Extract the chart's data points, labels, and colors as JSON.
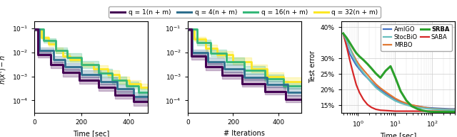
{
  "legend_entries": [
    {
      "label": "q = 1(n + m)",
      "color": "#440154",
      "lw": 2.2
    },
    {
      "label": "q = 4(n + m)",
      "color": "#2e6f8e",
      "lw": 2.2
    },
    {
      "label": "q = 16(n + m)",
      "color": "#35b779",
      "lw": 2.2
    },
    {
      "label": "q = 32(n + m)",
      "color": "#fde725",
      "lw": 2.2
    }
  ],
  "ax1": {
    "xlabel": "Time [sec]",
    "ylabel": "h(x^t) - h^*",
    "xlim": [
      0,
      480
    ],
    "ylim": [
      3e-05,
      0.2
    ],
    "xticks": [
      0,
      200,
      400
    ]
  },
  "ax2": {
    "xlabel": "# Iterations",
    "xlim": [
      0,
      500
    ],
    "ylim": [
      3e-05,
      0.2
    ],
    "xticks": [
      0,
      200,
      400
    ]
  },
  "ax3": {
    "xlabel": "Time [sec]",
    "ylabel": "Test error",
    "xlim": [
      0.35,
      400
    ],
    "ylim": [
      0.125,
      0.42
    ],
    "yticks": [
      0.15,
      0.2,
      0.25,
      0.3,
      0.4
    ],
    "ytick_labels": [
      "15%",
      "20%",
      "25%",
      "30%",
      "40%"
    ]
  },
  "curves_ax1": {
    "q32": {
      "color": "#fde725",
      "alpha_fill": 0.25,
      "lw": 2.0,
      "x": [
        0,
        30,
        30,
        60,
        60,
        90,
        90,
        120,
        120,
        150,
        150,
        200,
        200,
        250,
        250,
        310,
        310,
        360,
        360,
        400,
        400,
        450,
        450,
        480
      ],
      "y": [
        0.09,
        0.09,
        0.04,
        0.04,
        0.022,
        0.022,
        0.012,
        0.012,
        0.007,
        0.007,
        0.005,
        0.005,
        0.003,
        0.003,
        0.002,
        0.002,
        0.0012,
        0.0012,
        0.0007,
        0.0007,
        0.0005,
        0.0005,
        0.00035,
        0.00035
      ],
      "y_lo": [
        0.08,
        0.08,
        0.035,
        0.035,
        0.018,
        0.018,
        0.009,
        0.009,
        0.006,
        0.006,
        0.004,
        0.004,
        0.0025,
        0.0025,
        0.0015,
        0.0015,
        0.0009,
        0.0009,
        0.0005,
        0.0005,
        0.0004,
        0.0004,
        0.00028,
        0.00028
      ],
      "y_hi": [
        0.1,
        0.1,
        0.047,
        0.047,
        0.027,
        0.027,
        0.016,
        0.016,
        0.009,
        0.009,
        0.007,
        0.007,
        0.0038,
        0.0038,
        0.0028,
        0.0028,
        0.0018,
        0.0018,
        0.001,
        0.001,
        0.0007,
        0.0007,
        0.00048,
        0.00048
      ]
    },
    "q16": {
      "color": "#35b779",
      "alpha_fill": 0.25,
      "lw": 2.0,
      "x": [
        0,
        40,
        40,
        90,
        90,
        140,
        140,
        200,
        200,
        270,
        270,
        330,
        330,
        390,
        390,
        440,
        440,
        480
      ],
      "y": [
        0.09,
        0.09,
        0.03,
        0.03,
        0.012,
        0.012,
        0.006,
        0.006,
        0.003,
        0.003,
        0.0014,
        0.0014,
        0.0007,
        0.0007,
        0.0004,
        0.0004,
        0.00022,
        0.00022
      ],
      "y_lo": [
        0.08,
        0.08,
        0.025,
        0.025,
        0.009,
        0.009,
        0.004,
        0.004,
        0.0022,
        0.0022,
        0.001,
        0.001,
        0.0005,
        0.0005,
        0.0003,
        0.0003,
        0.00016,
        0.00016
      ],
      "y_hi": [
        0.1,
        0.1,
        0.037,
        0.037,
        0.016,
        0.016,
        0.009,
        0.009,
        0.0042,
        0.0042,
        0.002,
        0.002,
        0.001,
        0.001,
        0.0006,
        0.0006,
        0.00032,
        0.00032
      ]
    },
    "q4": {
      "color": "#2e6f8e",
      "alpha_fill": 0.25,
      "lw": 2.0,
      "x": [
        0,
        20,
        20,
        80,
        80,
        130,
        130,
        200,
        200,
        280,
        280,
        350,
        350,
        420,
        420,
        480
      ],
      "y": [
        0.09,
        0.09,
        0.012,
        0.012,
        0.005,
        0.005,
        0.0025,
        0.0025,
        0.0012,
        0.0012,
        0.0006,
        0.0006,
        0.0003,
        0.0003,
        0.00015,
        0.00015
      ],
      "y_lo": [
        0.08,
        0.08,
        0.009,
        0.009,
        0.0038,
        0.0038,
        0.0018,
        0.0018,
        0.0009,
        0.0009,
        0.00045,
        0.00045,
        0.0002,
        0.0002,
        0.0001,
        0.0001
      ],
      "y_hi": [
        0.1,
        0.1,
        0.016,
        0.016,
        0.007,
        0.007,
        0.0035,
        0.0035,
        0.0018,
        0.0018,
        0.0009,
        0.0009,
        0.00045,
        0.00045,
        0.00022,
        0.00022
      ]
    },
    "q1": {
      "color": "#440154",
      "alpha_fill": 0.25,
      "lw": 2.2,
      "x": [
        0,
        15,
        15,
        70,
        70,
        120,
        120,
        190,
        190,
        270,
        270,
        340,
        340,
        420,
        420,
        480
      ],
      "y": [
        0.09,
        0.09,
        0.008,
        0.008,
        0.003,
        0.003,
        0.0015,
        0.0015,
        0.0007,
        0.0007,
        0.00035,
        0.00035,
        0.00017,
        0.00017,
        9e-05,
        9e-05
      ],
      "y_lo": [
        0.08,
        0.08,
        0.006,
        0.006,
        0.0022,
        0.0022,
        0.001,
        0.001,
        0.0005,
        0.0005,
        0.00025,
        0.00025,
        0.00012,
        0.00012,
        6e-05,
        6e-05
      ],
      "y_hi": [
        0.1,
        0.1,
        0.011,
        0.011,
        0.004,
        0.004,
        0.0021,
        0.0021,
        0.001,
        0.001,
        0.0005,
        0.0005,
        0.00025,
        0.00025,
        0.00013,
        0.00013
      ]
    }
  },
  "curves_ax2": {
    "q32": {
      "color": "#fde725",
      "alpha_fill": 0.25,
      "lw": 2.0,
      "x": [
        0,
        30,
        30,
        80,
        80,
        130,
        130,
        200,
        200,
        280,
        280,
        350,
        350,
        420,
        420,
        500
      ],
      "y": [
        0.09,
        0.09,
        0.035,
        0.035,
        0.015,
        0.015,
        0.008,
        0.008,
        0.004,
        0.004,
        0.002,
        0.002,
        0.001,
        0.001,
        0.0006,
        0.0006
      ],
      "y_lo": [
        0.08,
        0.08,
        0.028,
        0.028,
        0.011,
        0.011,
        0.006,
        0.006,
        0.003,
        0.003,
        0.0015,
        0.0015,
        0.0008,
        0.0008,
        0.00045,
        0.00045
      ],
      "y_hi": [
        0.1,
        0.1,
        0.045,
        0.045,
        0.021,
        0.021,
        0.011,
        0.011,
        0.006,
        0.006,
        0.003,
        0.003,
        0.0015,
        0.0015,
        0.0009,
        0.0009
      ]
    },
    "q16": {
      "color": "#35b779",
      "alpha_fill": 0.25,
      "lw": 2.0,
      "x": [
        0,
        40,
        40,
        100,
        100,
        170,
        170,
        250,
        250,
        340,
        340,
        420,
        420,
        500
      ],
      "y": [
        0.09,
        0.09,
        0.025,
        0.025,
        0.009,
        0.009,
        0.004,
        0.004,
        0.0018,
        0.0018,
        0.0008,
        0.0008,
        0.0004,
        0.0004
      ],
      "y_lo": [
        0.08,
        0.08,
        0.019,
        0.019,
        0.007,
        0.007,
        0.003,
        0.003,
        0.0013,
        0.0013,
        0.0006,
        0.0006,
        0.0003,
        0.0003
      ],
      "y_hi": [
        0.1,
        0.1,
        0.033,
        0.033,
        0.013,
        0.013,
        0.006,
        0.006,
        0.0026,
        0.0026,
        0.0012,
        0.0012,
        0.0006,
        0.0006
      ]
    },
    "q4": {
      "color": "#2e6f8e",
      "alpha_fill": 0.25,
      "lw": 2.0,
      "x": [
        0,
        20,
        20,
        90,
        90,
        160,
        160,
        250,
        250,
        350,
        350,
        440,
        440,
        500
      ],
      "y": [
        0.09,
        0.09,
        0.01,
        0.01,
        0.004,
        0.004,
        0.002,
        0.002,
        0.0009,
        0.0009,
        0.00045,
        0.00045,
        0.00022,
        0.00022
      ],
      "y_lo": [
        0.08,
        0.08,
        0.008,
        0.008,
        0.003,
        0.003,
        0.0015,
        0.0015,
        0.0007,
        0.0007,
        0.00034,
        0.00034,
        0.00016,
        0.00016
      ],
      "y_hi": [
        0.1,
        0.1,
        0.013,
        0.013,
        0.006,
        0.006,
        0.003,
        0.003,
        0.0013,
        0.0013,
        0.00065,
        0.00065,
        0.00032,
        0.00032
      ]
    },
    "q1": {
      "color": "#440154",
      "alpha_fill": 0.25,
      "lw": 2.2,
      "x": [
        0,
        15,
        15,
        80,
        80,
        150,
        150,
        240,
        240,
        340,
        340,
        430,
        430,
        500
      ],
      "y": [
        0.09,
        0.09,
        0.007,
        0.007,
        0.0025,
        0.0025,
        0.0011,
        0.0011,
        0.0005,
        0.0005,
        0.00024,
        0.00024,
        0.00011,
        0.00011
      ],
      "y_lo": [
        0.08,
        0.08,
        0.005,
        0.005,
        0.0018,
        0.0018,
        0.0008,
        0.0008,
        0.00037,
        0.00037,
        0.00018,
        0.00018,
        8.5e-05,
        8.5e-05
      ],
      "y_hi": [
        0.1,
        0.1,
        0.01,
        0.01,
        0.0035,
        0.0035,
        0.0016,
        0.0016,
        0.0008,
        0.0008,
        0.00038,
        0.00038,
        0.00017,
        0.00017
      ]
    }
  },
  "curves_ax3": [
    {
      "label": "AmIGO",
      "color": "#4472c4",
      "lw": 1.6,
      "x": [
        0.4,
        0.5,
        0.6,
        0.7,
        0.8,
        0.9,
        1.1,
        1.4,
        1.8,
        2.3,
        3.0,
        4.0,
        5.5,
        7.5,
        10,
        14,
        20,
        28,
        40,
        55,
        75,
        100,
        140,
        200,
        300,
        400
      ],
      "y": [
        0.38,
        0.34,
        0.315,
        0.3,
        0.288,
        0.278,
        0.265,
        0.25,
        0.237,
        0.224,
        0.211,
        0.2,
        0.188,
        0.178,
        0.169,
        0.161,
        0.155,
        0.15,
        0.147,
        0.144,
        0.142,
        0.141,
        0.14,
        0.139,
        0.138,
        0.138
      ]
    },
    {
      "label": "MRBO",
      "color": "#e07832",
      "lw": 1.6,
      "x": [
        0.4,
        0.5,
        0.6,
        0.7,
        0.8,
        0.9,
        1.1,
        1.4,
        1.8,
        2.3,
        3.0,
        4.0,
        5.5,
        7.5,
        10,
        14,
        20,
        28,
        40,
        55,
        75,
        100,
        140,
        200,
        300,
        400
      ],
      "y": [
        0.38,
        0.355,
        0.335,
        0.318,
        0.305,
        0.293,
        0.278,
        0.263,
        0.248,
        0.233,
        0.218,
        0.205,
        0.193,
        0.182,
        0.172,
        0.163,
        0.156,
        0.151,
        0.147,
        0.144,
        0.141,
        0.139,
        0.138,
        0.137,
        0.136,
        0.136
      ]
    },
    {
      "label": "SABA",
      "color": "#d62728",
      "lw": 1.6,
      "x": [
        0.4,
        0.5,
        0.6,
        0.7,
        0.8,
        0.9,
        1.1,
        1.4,
        1.8,
        2.3,
        3.0,
        4.0,
        5.5,
        7.5,
        10,
        14,
        20,
        28,
        40,
        55,
        75,
        100,
        140,
        200,
        300,
        400
      ],
      "y": [
        0.38,
        0.335,
        0.295,
        0.263,
        0.237,
        0.215,
        0.19,
        0.168,
        0.152,
        0.143,
        0.137,
        0.134,
        0.133,
        0.132,
        0.131,
        0.131,
        0.131,
        0.131,
        0.131,
        0.131,
        0.131,
        0.131,
        0.131,
        0.131,
        0.131,
        0.131
      ]
    },
    {
      "label": "StocBiO",
      "color": "#68bfbe",
      "lw": 1.6,
      "x": [
        0.4,
        0.5,
        0.6,
        0.7,
        0.8,
        0.9,
        1.1,
        1.4,
        1.8,
        2.3,
        3.0,
        4.0,
        5.5,
        7.5,
        10,
        14,
        20,
        28,
        40,
        55,
        75,
        100,
        140,
        200,
        300,
        400
      ],
      "y": [
        0.38,
        0.355,
        0.333,
        0.314,
        0.299,
        0.286,
        0.27,
        0.254,
        0.238,
        0.222,
        0.207,
        0.195,
        0.183,
        0.173,
        0.164,
        0.157,
        0.151,
        0.146,
        0.143,
        0.141,
        0.139,
        0.138,
        0.137,
        0.136,
        0.135,
        0.135
      ]
    },
    {
      "label": "SRBA",
      "color": "#2ca02c",
      "lw": 2.2,
      "x": [
        0.4,
        0.5,
        0.6,
        0.7,
        0.8,
        0.9,
        1.1,
        1.4,
        1.8,
        2.3,
        3.0,
        4.0,
        5.5,
        7.5,
        10,
        14,
        20,
        28,
        40,
        55,
        75,
        100,
        140,
        200,
        300,
        400
      ],
      "y": [
        0.38,
        0.365,
        0.35,
        0.337,
        0.326,
        0.317,
        0.306,
        0.295,
        0.282,
        0.268,
        0.252,
        0.238,
        0.26,
        0.275,
        0.24,
        0.195,
        0.165,
        0.147,
        0.138,
        0.133,
        0.13,
        0.129,
        0.129,
        0.129,
        0.129,
        0.129
      ]
    }
  ],
  "fig_bg": "#ffffff"
}
